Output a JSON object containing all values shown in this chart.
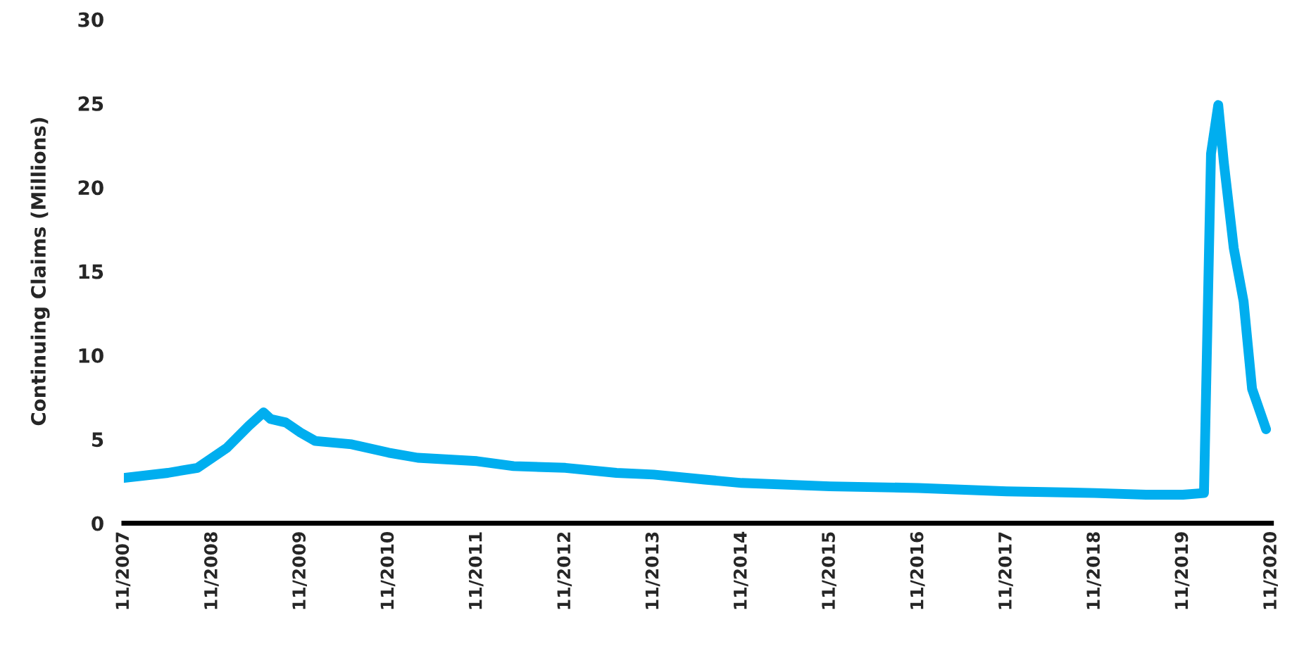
{
  "chart_data": {
    "type": "line",
    "ylabel": "Continuing Claims (Millions)",
    "ylim": [
      0,
      30
    ],
    "yticks": [
      0,
      5,
      10,
      15,
      20,
      25,
      30
    ],
    "xlim": [
      "2007-11-01",
      "2020-11-01"
    ],
    "xticks": [
      {
        "value": "2007-11",
        "label": "11/2007"
      },
      {
        "value": "2008-11",
        "label": "11/2008"
      },
      {
        "value": "2009-11",
        "label": "11/2009"
      },
      {
        "value": "2010-11",
        "label": "11/2010"
      },
      {
        "value": "2011-11",
        "label": "11/2011"
      },
      {
        "value": "2012-11",
        "label": "11/2012"
      },
      {
        "value": "2013-11",
        "label": "11/2013"
      },
      {
        "value": "2014-11",
        "label": "11/2014"
      },
      {
        "value": "2015-11",
        "label": "11/2015"
      },
      {
        "value": "2016-11",
        "label": "11/2016"
      },
      {
        "value": "2017-11",
        "label": "11/2017"
      },
      {
        "value": "2018-11",
        "label": "11/2018"
      },
      {
        "value": "2019-11",
        "label": "11/2019"
      },
      {
        "value": "2020-11",
        "label": "11/2020"
      }
    ],
    "grid": false,
    "legend": false,
    "marker": "none",
    "line_style": "solid",
    "series": [
      {
        "color": "#00aeef",
        "x": [
          "2007-11-01",
          "2008-05-01",
          "2008-09-01",
          "2008-11-01",
          "2009-01-01",
          "2009-04-01",
          "2009-06-01",
          "2009-07-01",
          "2009-09-01",
          "2009-11-01",
          "2010-01-01",
          "2010-06-01",
          "2010-11-01",
          "2011-03-01",
          "2011-11-01",
          "2012-04-01",
          "2012-11-01",
          "2013-06-01",
          "2013-11-01",
          "2014-06-01",
          "2014-11-01",
          "2015-11-01",
          "2016-11-01",
          "2017-11-01",
          "2018-11-01",
          "2019-06-01",
          "2019-11-01",
          "2020-01-27",
          "2020-02-25",
          "2020-03-26",
          "2020-04-18",
          "2020-05-29",
          "2020-07-09",
          "2020-08-13",
          "2020-10-10"
        ],
        "values": [
          2.7,
          3.0,
          3.3,
          3.9,
          4.5,
          5.8,
          6.6,
          6.2,
          6.0,
          5.4,
          4.9,
          4.7,
          4.2,
          3.9,
          3.7,
          3.4,
          3.3,
          3.0,
          2.9,
          2.6,
          2.4,
          2.2,
          2.1,
          1.9,
          1.8,
          1.7,
          1.7,
          1.8,
          22,
          24.9,
          21.5,
          16.4,
          13.2,
          8.0,
          5.6
        ]
      }
    ]
  }
}
